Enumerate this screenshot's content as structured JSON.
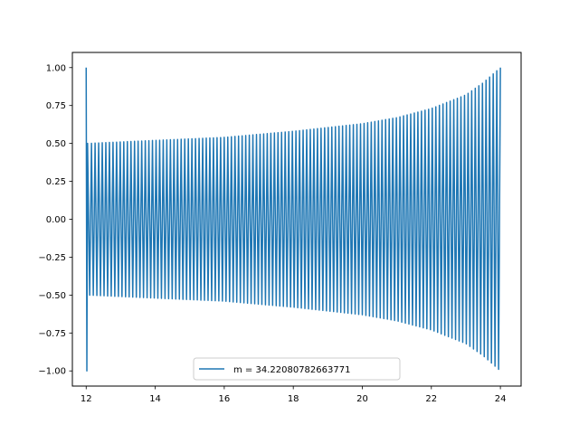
{
  "chart_data": {
    "type": "line",
    "title": "",
    "xlabel": "",
    "ylabel": "",
    "xlim": [
      11.6,
      24.6
    ],
    "ylim": [
      -1.1,
      1.1
    ],
    "x_ticks": [
      12,
      14,
      16,
      18,
      20,
      22,
      24
    ],
    "x_tick_labels": [
      "12",
      "14",
      "16",
      "18",
      "20",
      "22",
      "24"
    ],
    "y_ticks": [
      -1.0,
      -0.75,
      -0.5,
      -0.25,
      0.0,
      0.25,
      0.5,
      0.75,
      1.0
    ],
    "y_tick_labels": [
      "−1.00",
      "−0.75",
      "−0.50",
      "−0.25",
      "0.00",
      "0.25",
      "0.50",
      "0.75",
      "1.00"
    ],
    "grid": false,
    "legend_position": "lower center",
    "series": [
      {
        "name": "m = 34.22080782663771",
        "color": "#1f77b4",
        "x_range": [
          12,
          24
        ],
        "y_start": 1.0,
        "y_end": 1.0,
        "envelope": [
          {
            "x": 12.05,
            "y": 0.5
          },
          {
            "x": 14,
            "y": 0.52
          },
          {
            "x": 16,
            "y": 0.54
          },
          {
            "x": 18,
            "y": 0.58
          },
          {
            "x": 20,
            "y": 0.63
          },
          {
            "x": 21,
            "y": 0.67
          },
          {
            "x": 22,
            "y": 0.73
          },
          {
            "x": 23,
            "y": 0.82
          },
          {
            "x": 23.5,
            "y": 0.9
          },
          {
            "x": 24,
            "y": 1.0
          }
        ]
      }
    ]
  }
}
